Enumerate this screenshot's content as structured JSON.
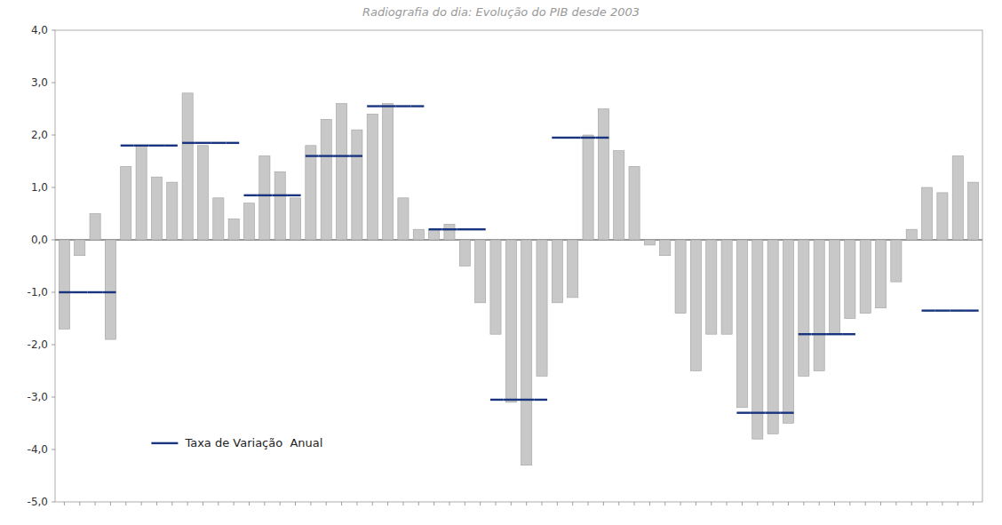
{
  "chart_data": {
    "type": "bar",
    "title": "Radiografia do dia: Evolução do PIB desde 2003",
    "categories": [
      null,
      null,
      null,
      null,
      null,
      null,
      null,
      null,
      null,
      null,
      null,
      null,
      null,
      null,
      null,
      null,
      null,
      null,
      null,
      null,
      null,
      null,
      null,
      null,
      null,
      null,
      null,
      null,
      null,
      null,
      null,
      null,
      null,
      null,
      null,
      null,
      null,
      null,
      null,
      null,
      null,
      null,
      null,
      null,
      null,
      null,
      null,
      null,
      null,
      null,
      null,
      null,
      null,
      null,
      null,
      null,
      null,
      null,
      null,
      null
    ],
    "series": [
      {
        "type": "bar",
        "color": "#c8c8c8",
        "values": [
          -1.7,
          -0.3,
          0.5,
          -1.9,
          1.4,
          1.8,
          1.2,
          1.1,
          2.8,
          1.8,
          0.8,
          0.4,
          0.7,
          1.6,
          1.3,
          0.8,
          1.8,
          2.3,
          2.6,
          2.1,
          2.4,
          2.6,
          0.8,
          0.2,
          0.2,
          0.3,
          -0.5,
          -1.2,
          -1.8,
          -3.1,
          -4.3,
          -2.6,
          -1.2,
          -1.1,
          2.0,
          2.5,
          1.7,
          1.4,
          -0.1,
          -0.3,
          -1.4,
          -2.5,
          -1.8,
          -1.8,
          -3.2,
          -3.8,
          -3.7,
          -3.5,
          -2.6,
          -2.5,
          -1.8,
          -1.5,
          -1.4,
          -1.3,
          -0.8,
          0.2,
          1.0,
          0.9,
          1.6,
          1.1
        ]
      },
      {
        "name": "Taxa de Variação  Anual",
        "type": "line",
        "line_style": "solid",
        "color": "#1a3580",
        "values": [
          -1.0,
          -1.0,
          -1.0,
          -1.0,
          1.8,
          1.8,
          1.8,
          1.8,
          1.85,
          1.85,
          1.85,
          1.85,
          0.85,
          0.85,
          0.85,
          0.85,
          1.6,
          1.6,
          1.6,
          1.6,
          2.55,
          2.55,
          2.55,
          2.55,
          0.2,
          0.2,
          0.2,
          0.2,
          -3.05,
          -3.05,
          -3.05,
          -3.05,
          1.95,
          1.95,
          1.95,
          1.95,
          null,
          null,
          null,
          null,
          null,
          null,
          null,
          null,
          -3.3,
          -3.3,
          -3.3,
          -3.3,
          -1.8,
          -1.8,
          -1.8,
          -1.8,
          null,
          null,
          null,
          null,
          -1.35,
          -1.35,
          -1.35,
          -1.35
        ]
      }
    ],
    "ylim": [
      -5.0,
      4.0
    ],
    "yticks": [
      {
        "value": -5.0,
        "label": "-5,0"
      },
      {
        "value": -4.0,
        "label": "-4,0"
      },
      {
        "value": -3.0,
        "label": "-3,0"
      },
      {
        "value": -2.0,
        "label": "-2,0"
      },
      {
        "value": -1.0,
        "label": "-1,0"
      },
      {
        "value": 0.0,
        "label": "0,0"
      },
      {
        "value": 1.0,
        "label": "1,0"
      },
      {
        "value": 2.0,
        "label": "2,0"
      },
      {
        "value": 3.0,
        "label": "3,0"
      },
      {
        "value": 4.0,
        "label": "4,0"
      }
    ],
    "grid": false,
    "legend": "lower left",
    "tick_labels": "y"
  }
}
